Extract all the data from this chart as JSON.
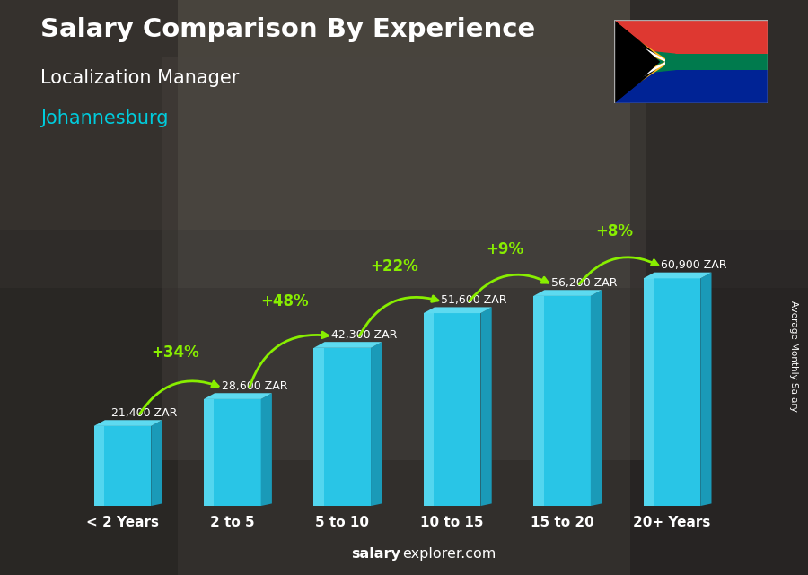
{
  "title": "Salary Comparison By Experience",
  "subtitle": "Localization Manager",
  "city": "Johannesburg",
  "categories": [
    "< 2 Years",
    "2 to 5",
    "5 to 10",
    "10 to 15",
    "15 to 20",
    "20+ Years"
  ],
  "values": [
    21400,
    28600,
    42300,
    51600,
    56200,
    60900
  ],
  "labels": [
    "21,400 ZAR",
    "28,600 ZAR",
    "42,300 ZAR",
    "51,600 ZAR",
    "56,200 ZAR",
    "60,900 ZAR"
  ],
  "pct_changes": [
    "+34%",
    "+48%",
    "+22%",
    "+9%",
    "+8%"
  ],
  "bar_face_color": "#29c5e6",
  "bar_top_color": "#5ddaf0",
  "bar_side_color": "#1a9ab8",
  "bar_highlight_color": "#7de8f8",
  "title_color": "#ffffff",
  "subtitle_color": "#ffffff",
  "city_color": "#00ccdd",
  "label_color": "#ffffff",
  "pct_color": "#88ee00",
  "arrow_color": "#88ee00",
  "watermark_bold": "salary",
  "watermark_regular": "explorer.com",
  "ylabel": "Average Monthly Salary",
  "figsize": [
    9.0,
    6.41
  ],
  "ylim": [
    0,
    80000
  ],
  "bg_color": "#4a4a4a"
}
